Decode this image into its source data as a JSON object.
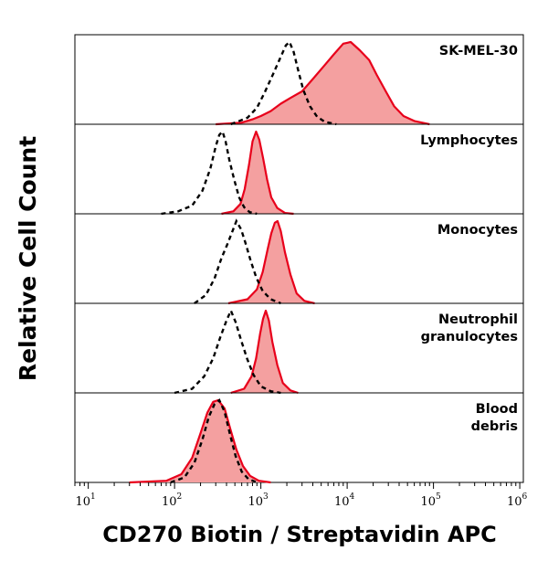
{
  "chart_data": {
    "type": "area",
    "title": "",
    "xlabel": "CD270 Biotin / Streptavidin APC",
    "ylabel": "Relative Cell Count",
    "x_scale": "log",
    "xlim": [
      7,
      1100000
    ],
    "x_ticks": [
      {
        "base": "10",
        "exp": "1"
      },
      {
        "base": "10",
        "exp": "2"
      },
      {
        "base": "10",
        "exp": "3"
      },
      {
        "base": "10",
        "exp": "4"
      },
      {
        "base": "10",
        "exp": "5"
      },
      {
        "base": "10",
        "exp": "6"
      }
    ],
    "grid": false,
    "colors": {
      "stained": "#e8001b",
      "stained_fill": "#f4a0a0",
      "control": "#000000"
    },
    "panels": [
      {
        "label_lines": [
          "SK-MEL-30"
        ],
        "series": [
          {
            "kind": "stained",
            "points": [
              [
                300,
                0
              ],
              [
                600,
                0.02
              ],
              [
                800,
                0.06
              ],
              [
                1000,
                0.1
              ],
              [
                1300,
                0.16
              ],
              [
                1700,
                0.25
              ],
              [
                2200,
                0.32
              ],
              [
                3000,
                0.4
              ],
              [
                4000,
                0.55
              ],
              [
                5500,
                0.72
              ],
              [
                7000,
                0.85
              ],
              [
                9000,
                0.98
              ],
              [
                11000,
                1.0
              ],
              [
                14000,
                0.9
              ],
              [
                18000,
                0.78
              ],
              [
                22000,
                0.6
              ],
              [
                28000,
                0.4
              ],
              [
                35000,
                0.22
              ],
              [
                45000,
                0.1
              ],
              [
                60000,
                0.04
              ],
              [
                90000,
                0
              ]
            ]
          },
          {
            "kind": "control",
            "points": [
              [
                450,
                0
              ],
              [
                700,
                0.08
              ],
              [
                900,
                0.2
              ],
              [
                1100,
                0.38
              ],
              [
                1400,
                0.62
              ],
              [
                1700,
                0.82
              ],
              [
                1950,
                0.96
              ],
              [
                2150,
                1.0
              ],
              [
                2400,
                0.88
              ],
              [
                2700,
                0.66
              ],
              [
                3100,
                0.42
              ],
              [
                3700,
                0.22
              ],
              [
                4500,
                0.09
              ],
              [
                5500,
                0.03
              ],
              [
                7500,
                0
              ]
            ]
          }
        ]
      },
      {
        "label_lines": [
          "Lymphocytes"
        ],
        "series": [
          {
            "kind": "stained",
            "points": [
              [
                350,
                0
              ],
              [
                480,
                0.03
              ],
              [
                580,
                0.12
              ],
              [
                650,
                0.3
              ],
              [
                730,
                0.6
              ],
              [
                800,
                0.88
              ],
              [
                880,
                1.0
              ],
              [
                960,
                0.9
              ],
              [
                1060,
                0.68
              ],
              [
                1180,
                0.42
              ],
              [
                1320,
                0.2
              ],
              [
                1550,
                0.07
              ],
              [
                1900,
                0.01
              ],
              [
                2400,
                0
              ]
            ]
          },
          {
            "kind": "control",
            "points": [
              [
                70,
                0
              ],
              [
                110,
                0.03
              ],
              [
                160,
                0.1
              ],
              [
                210,
                0.28
              ],
              [
                260,
                0.55
              ],
              [
                300,
                0.82
              ],
              [
                330,
                0.96
              ],
              [
                360,
                1.0
              ],
              [
                390,
                0.88
              ],
              [
                430,
                0.66
              ],
              [
                490,
                0.42
              ],
              [
                560,
                0.2
              ],
              [
                640,
                0.08
              ],
              [
                740,
                0.02
              ],
              [
                900,
                0
              ]
            ]
          }
        ]
      },
      {
        "label_lines": [
          "Monocytes"
        ],
        "series": [
          {
            "kind": "stained",
            "points": [
              [
                420,
                0
              ],
              [
                700,
                0.05
              ],
              [
                900,
                0.17
              ],
              [
                1050,
                0.38
              ],
              [
                1200,
                0.66
              ],
              [
                1320,
                0.85
              ],
              [
                1450,
                0.98
              ],
              [
                1560,
                1.0
              ],
              [
                1700,
                0.88
              ],
              [
                1900,
                0.62
              ],
              [
                2200,
                0.35
              ],
              [
                2600,
                0.12
              ],
              [
                3200,
                0.03
              ],
              [
                4200,
                0
              ]
            ]
          },
          {
            "kind": "control",
            "points": [
              [
                170,
                0
              ],
              [
                230,
                0.1
              ],
              [
                290,
                0.3
              ],
              [
                350,
                0.55
              ],
              [
                410,
                0.72
              ],
              [
                470,
                0.88
              ],
              [
                520,
                1.0
              ],
              [
                590,
                0.9
              ],
              [
                660,
                0.74
              ],
              [
                760,
                0.52
              ],
              [
                880,
                0.32
              ],
              [
                1050,
                0.15
              ],
              [
                1300,
                0.05
              ],
              [
                1700,
                0
              ]
            ]
          }
        ]
      },
      {
        "label_lines": [
          "Neutrophil",
          "granulocytes"
        ],
        "series": [
          {
            "kind": "stained",
            "points": [
              [
                450,
                0
              ],
              [
                640,
                0.05
              ],
              [
                780,
                0.2
              ],
              [
                880,
                0.42
              ],
              [
                980,
                0.72
              ],
              [
                1060,
                0.9
              ],
              [
                1140,
                1.0
              ],
              [
                1240,
                0.88
              ],
              [
                1360,
                0.62
              ],
              [
                1550,
                0.34
              ],
              [
                1800,
                0.12
              ],
              [
                2200,
                0.03
              ],
              [
                2700,
                0
              ]
            ]
          },
          {
            "kind": "control",
            "points": [
              [
                100,
                0
              ],
              [
                160,
                0.05
              ],
              [
                220,
                0.2
              ],
              [
                280,
                0.42
              ],
              [
                340,
                0.68
              ],
              [
                400,
                0.88
              ],
              [
                450,
                1.0
              ],
              [
                510,
                0.86
              ],
              [
                590,
                0.64
              ],
              [
                690,
                0.42
              ],
              [
                820,
                0.22
              ],
              [
                1000,
                0.08
              ],
              [
                1300,
                0.02
              ],
              [
                1700,
                0
              ]
            ]
          }
        ]
      },
      {
        "label_lines": [
          "Blood",
          "debris"
        ],
        "series": [
          {
            "kind": "stained",
            "points": [
              [
                30,
                0
              ],
              [
                80,
                0.02
              ],
              [
                120,
                0.1
              ],
              [
                160,
                0.3
              ],
              [
                200,
                0.6
              ],
              [
                240,
                0.85
              ],
              [
                280,
                0.98
              ],
              [
                320,
                1.0
              ],
              [
                380,
                0.9
              ],
              [
                440,
                0.66
              ],
              [
                520,
                0.4
              ],
              [
                620,
                0.2
              ],
              [
                750,
                0.08
              ],
              [
                950,
                0.02
              ],
              [
                1300,
                0
              ]
            ]
          },
          {
            "kind": "control",
            "points": [
              [
                90,
                0
              ],
              [
                130,
                0.06
              ],
              [
                170,
                0.24
              ],
              [
                210,
                0.52
              ],
              [
                250,
                0.8
              ],
              [
                290,
                0.95
              ],
              [
                330,
                1.0
              ],
              [
                380,
                0.86
              ],
              [
                440,
                0.58
              ],
              [
                510,
                0.32
              ],
              [
                600,
                0.13
              ],
              [
                720,
                0.04
              ],
              [
                900,
                0
              ]
            ]
          }
        ]
      }
    ]
  }
}
